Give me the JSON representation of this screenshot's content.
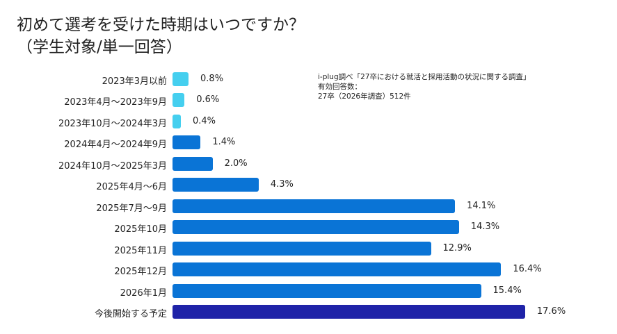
{
  "chart_data": {
    "type": "bar",
    "orientation": "horizontal",
    "title": "初めて選考を受けた時期はいつですか？",
    "subtitle": "（学生対象/単一回答）",
    "annotation": [
      "i-plug調べ「27卒における就活と採用活動の状況に関する調査」",
      "有効回答数：",
      "27卒（2026年調査）512件"
    ],
    "categories": [
      "2023年3月以前",
      "2023年4月～2023年9月",
      "2023年10月～2024年3月",
      "2024年4月～2024年9月",
      "2024年10月～2025年3月",
      "2025年4月～6月",
      "2025年7月～9月",
      "2025年10月",
      "2025年11月",
      "2025年12月",
      "2026年1月",
      "今後開始する予定"
    ],
    "values": [
      0.8,
      0.6,
      0.4,
      1.4,
      2.0,
      4.3,
      14.1,
      14.3,
      12.9,
      16.4,
      15.4,
      17.6
    ],
    "value_labels": [
      "0.8%",
      "0.6%",
      "0.4%",
      "1.4%",
      "2.0%",
      "4.3%",
      "14.1%",
      "14.3%",
      "12.9%",
      "16.4%",
      "15.4%",
      "17.6%"
    ],
    "bar_colors": [
      "#45cfef",
      "#45cfef",
      "#45cfef",
      "#0a74d6",
      "#0a74d6",
      "#0a74d6",
      "#0a74d6",
      "#0a74d6",
      "#0a74d6",
      "#0a74d6",
      "#0a74d6",
      "#1f23a8"
    ],
    "unit": "%",
    "grid": false,
    "legend": "none"
  }
}
